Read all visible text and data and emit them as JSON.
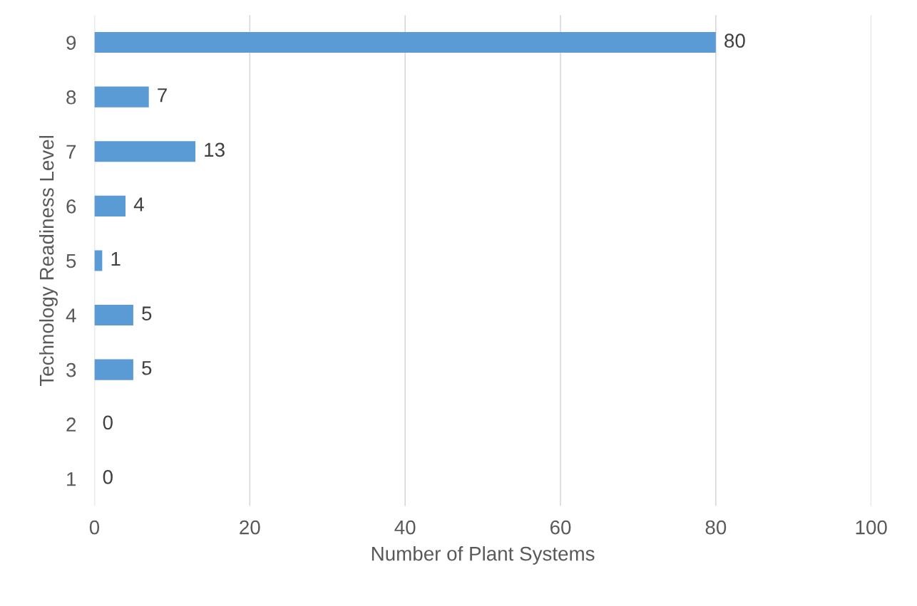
{
  "chart_data": {
    "type": "bar",
    "orientation": "horizontal",
    "xlabel": "Number of Plant Systems",
    "ylabel": "Technology Readiness Level",
    "categories": [
      "9",
      "8",
      "7",
      "6",
      "5",
      "4",
      "3",
      "2",
      "1"
    ],
    "values": [
      80,
      7,
      13,
      4,
      1,
      5,
      5,
      0,
      0
    ],
    "color": "#5b9bd5",
    "data_labels": true,
    "xlim": [
      0,
      100
    ],
    "xticks": [
      0,
      20,
      40,
      60,
      80,
      100
    ],
    "grid": "x"
  }
}
